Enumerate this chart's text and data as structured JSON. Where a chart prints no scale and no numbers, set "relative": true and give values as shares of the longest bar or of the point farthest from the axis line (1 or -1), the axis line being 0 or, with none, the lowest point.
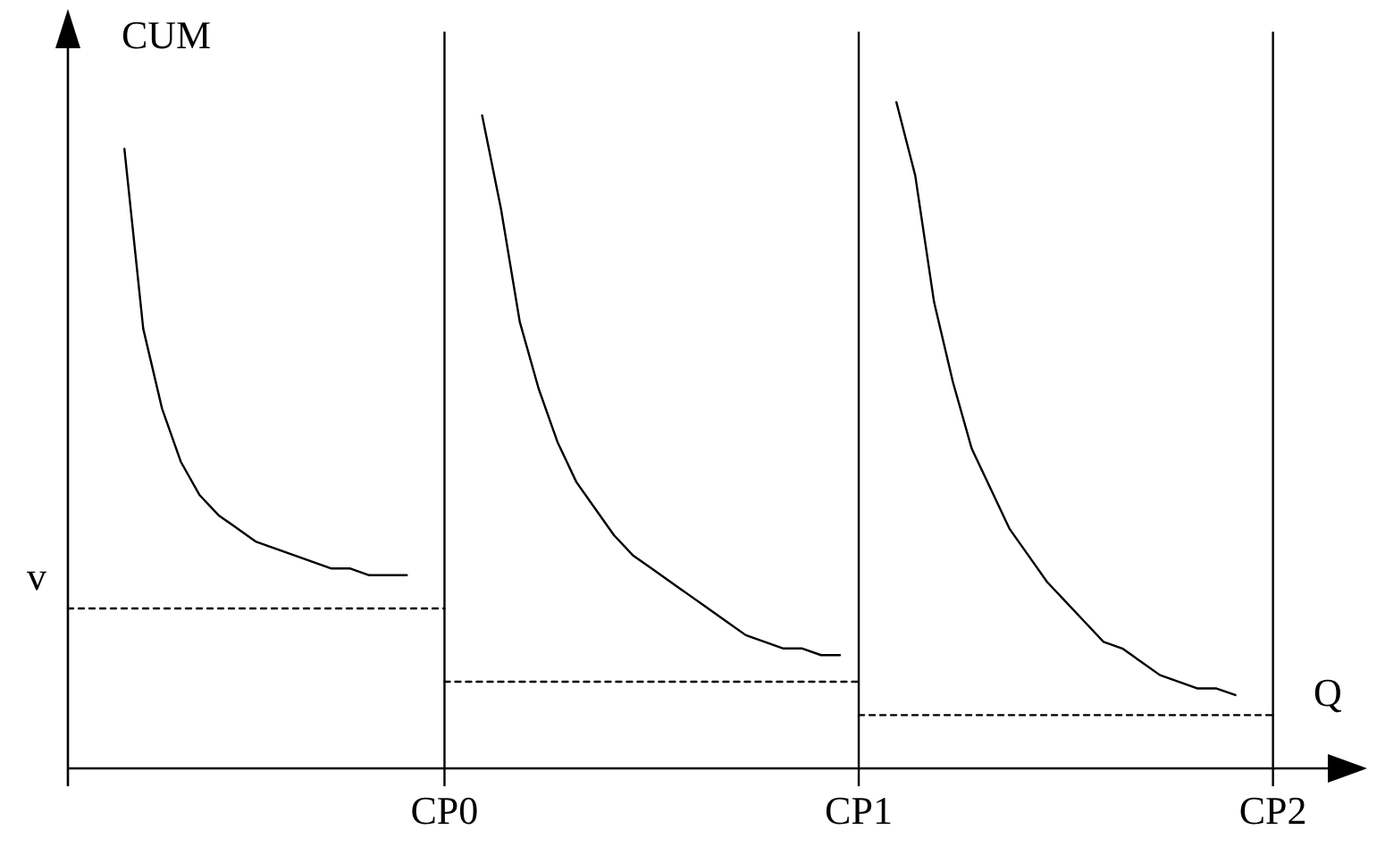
{
  "chart_data": {
    "type": "line",
    "relative": true,
    "xlabel": "Q",
    "ylabel": "CUM",
    "categories": [
      null,
      null,
      null,
      null,
      null,
      null,
      null,
      null,
      null,
      null,
      null,
      null,
      null,
      null,
      null,
      null,
      null,
      null,
      null,
      null,
      "CP0",
      null,
      null,
      null,
      null,
      null,
      null,
      null,
      null,
      null,
      null,
      null,
      null,
      null,
      null,
      null,
      null,
      null,
      null,
      null,
      null,
      null,
      "CP1",
      null,
      null,
      null,
      null,
      null,
      null,
      null,
      null,
      null,
      null,
      null,
      null,
      null,
      null,
      null,
      null,
      null,
      null,
      null,
      null,
      null,
      "CP2",
      null,
      null,
      null,
      null,
      null
    ],
    "ref_lines": [
      {
        "axis": "x",
        "value": "CP0",
        "color": "#000000"
      },
      {
        "axis": "x",
        "value": "CP1",
        "color": "#000000"
      },
      {
        "axis": "x",
        "value": "CP2",
        "color": "#000000"
      }
    ],
    "annotations": [
      "v"
    ],
    "series": [
      {
        "color": "#000000",
        "values": [
          null,
          null,
          null,
          0.93,
          0.66,
          0.54,
          0.46,
          0.41,
          0.38,
          0.36,
          0.34,
          0.33,
          0.32,
          0.31,
          0.3,
          0.3,
          0.29,
          0.29,
          0.29,
          null,
          null,
          null,
          null,
          null,
          null,
          null,
          null,
          null,
          null,
          null,
          null,
          null,
          null,
          null,
          null,
          null,
          null,
          null,
          null,
          null,
          null,
          null,
          null,
          null,
          null,
          null,
          null,
          null,
          null,
          null,
          null,
          null,
          null,
          null,
          null,
          null,
          null,
          null,
          null,
          null,
          null,
          null,
          null,
          null,
          null,
          null,
          null,
          null,
          null,
          null
        ]
      },
      {
        "color": "#000000",
        "values": [
          null,
          null,
          null,
          null,
          null,
          null,
          null,
          null,
          null,
          null,
          null,
          null,
          null,
          null,
          null,
          null,
          null,
          null,
          null,
          null,
          null,
          null,
          0.98,
          0.84,
          0.67,
          0.57,
          0.49,
          0.43,
          0.39,
          0.35,
          0.32,
          0.3,
          0.28,
          0.26,
          0.24,
          0.22,
          0.2,
          0.19,
          0.18,
          0.18,
          0.17,
          0.17,
          null,
          null,
          null,
          null,
          null,
          null,
          null,
          null,
          null,
          null,
          null,
          null,
          null,
          null,
          null,
          null,
          null,
          null,
          null,
          null,
          null,
          null,
          null,
          null,
          null,
          null,
          null,
          null
        ]
      },
      {
        "color": "#000000",
        "values": [
          null,
          null,
          null,
          null,
          null,
          null,
          null,
          null,
          null,
          null,
          null,
          null,
          null,
          null,
          null,
          null,
          null,
          null,
          null,
          null,
          null,
          null,
          null,
          null,
          null,
          null,
          null,
          null,
          null,
          null,
          null,
          null,
          null,
          null,
          null,
          null,
          null,
          null,
          null,
          null,
          null,
          null,
          null,
          null,
          1,
          0.89,
          0.7,
          0.58,
          0.48,
          0.42,
          0.36,
          0.32,
          0.28,
          0.25,
          0.22,
          0.19,
          0.18,
          0.16,
          0.14,
          0.13,
          0.12,
          0.12,
          0.11,
          null,
          null,
          null,
          null,
          null,
          null,
          null
        ]
      },
      {
        "color": "#000000",
        "line_style": "dashed",
        "values": [
          0.24,
          0.24,
          0.24,
          0.24,
          0.24,
          0.24,
          0.24,
          0.24,
          0.24,
          0.24,
          0.24,
          0.24,
          0.24,
          0.24,
          0.24,
          0.24,
          0.24,
          0.24,
          0.24,
          0.24,
          0.24,
          null,
          null,
          null,
          null,
          null,
          null,
          null,
          null,
          null,
          null,
          null,
          null,
          null,
          null,
          null,
          null,
          null,
          null,
          null,
          null,
          null,
          null,
          null,
          null,
          null,
          null,
          null,
          null,
          null,
          null,
          null,
          null,
          null,
          null,
          null,
          null,
          null,
          null,
          null,
          null,
          null,
          null,
          null,
          null,
          null,
          null,
          null,
          null,
          null
        ]
      },
      {
        "color": "#000000",
        "line_style": "dashed",
        "values": [
          null,
          null,
          null,
          null,
          null,
          null,
          null,
          null,
          null,
          null,
          null,
          null,
          null,
          null,
          null,
          null,
          null,
          null,
          null,
          null,
          0.13,
          0.13,
          0.13,
          0.13,
          0.13,
          0.13,
          0.13,
          0.13,
          0.13,
          0.13,
          0.13,
          0.13,
          0.13,
          0.13,
          0.13,
          0.13,
          0.13,
          0.13,
          0.13,
          0.13,
          0.13,
          0.13,
          0.13,
          null,
          null,
          null,
          null,
          null,
          null,
          null,
          null,
          null,
          null,
          null,
          null,
          null,
          null,
          null,
          null,
          null,
          null,
          null,
          null,
          null,
          null,
          null,
          null,
          null,
          null,
          null
        ]
      },
      {
        "color": "#000000",
        "line_style": "dashed",
        "values": [
          null,
          null,
          null,
          null,
          null,
          null,
          null,
          null,
          null,
          null,
          null,
          null,
          null,
          null,
          null,
          null,
          null,
          null,
          null,
          null,
          null,
          null,
          null,
          null,
          null,
          null,
          null,
          null,
          null,
          null,
          null,
          null,
          null,
          null,
          null,
          null,
          null,
          null,
          null,
          null,
          null,
          null,
          0.08,
          0.08,
          0.08,
          0.08,
          0.08,
          0.08,
          0.08,
          0.08,
          0.08,
          0.08,
          0.08,
          0.08,
          0.08,
          0.08,
          0.08,
          0.08,
          0.08,
          0.08,
          0.08,
          0.08,
          0.08,
          0.08,
          0.08,
          null,
          null,
          null,
          null,
          null
        ]
      }
    ]
  }
}
